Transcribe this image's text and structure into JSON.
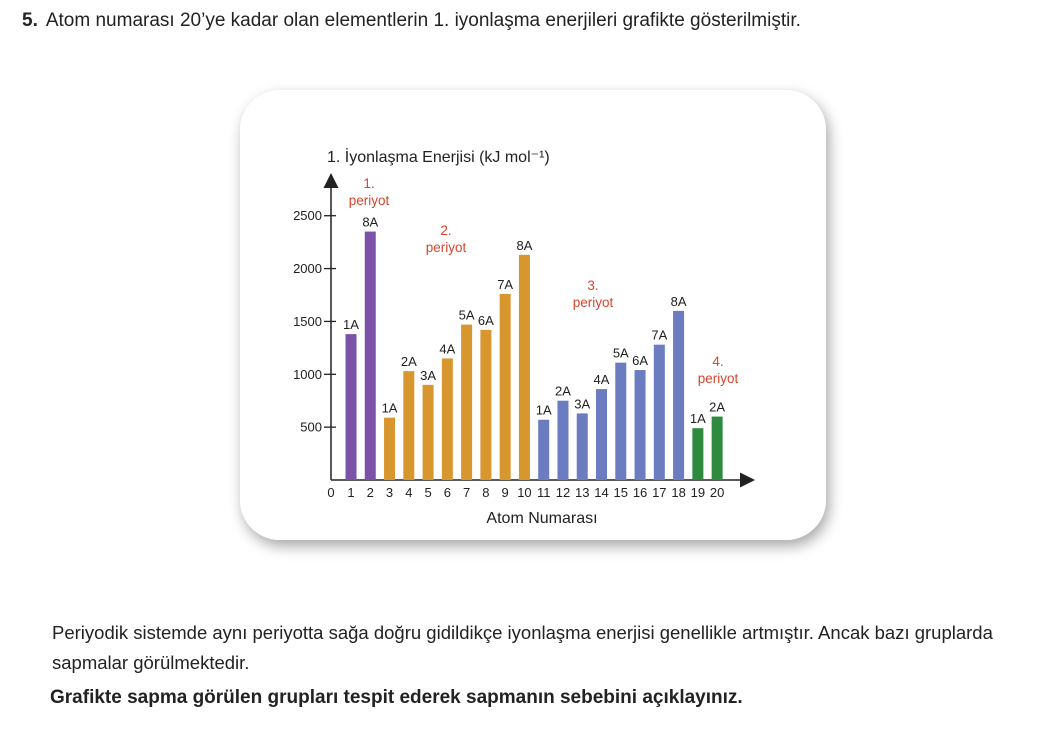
{
  "question": {
    "number": "5.",
    "text": "Atom numarası 20’ye kadar olan elementlerin 1. iyonlaşma enerjileri grafikte gösterilmiştir."
  },
  "chart_data": {
    "type": "bar",
    "y_label": "1. İyonlaşma Enerjisi (kJ mol⁻¹)",
    "x_label": "Atom Numarası",
    "x_origin_label": "0",
    "categories": [
      "1",
      "2",
      "3",
      "4",
      "5",
      "6",
      "7",
      "8",
      "9",
      "10",
      "11",
      "12",
      "13",
      "14",
      "15",
      "16",
      "17",
      "18",
      "19",
      "20"
    ],
    "values": [
      1380,
      2350,
      590,
      1030,
      900,
      1150,
      1470,
      1420,
      1760,
      2130,
      570,
      750,
      630,
      860,
      1110,
      1040,
      1280,
      1600,
      490,
      600
    ],
    "colors": [
      "#7b52a8",
      "#7b52a8",
      "#d8962f",
      "#d8962f",
      "#d8962f",
      "#d8962f",
      "#d8962f",
      "#d8962f",
      "#d8962f",
      "#d8962f",
      "#6b7cc0",
      "#6b7cc0",
      "#6b7cc0",
      "#6b7cc0",
      "#6b7cc0",
      "#6b7cc0",
      "#6b7cc0",
      "#6b7cc0",
      "#2e8a3e",
      "#2e8a3e"
    ],
    "groups": [
      "1A",
      "8A",
      "1A",
      "2A",
      "3A",
      "4A",
      "5A",
      "6A",
      "7A",
      "8A",
      "1A",
      "2A",
      "3A",
      "4A",
      "5A",
      "6A",
      "7A",
      "8A",
      "1A",
      "2A"
    ],
    "annotations": [
      {
        "lines": [
          "1.",
          "periyot"
        ],
        "color": "#d9442b"
      },
      {
        "lines": [
          "2.",
          "periyot"
        ],
        "color": "#d9442b"
      },
      {
        "lines": [
          "3.",
          "periyot"
        ],
        "color": "#d9442b"
      },
      {
        "lines": [
          "4.",
          "periyot"
        ],
        "color": "#d9442b"
      }
    ],
    "ylim": [
      0,
      2800
    ],
    "yticks": [
      500,
      1000,
      1500,
      2000,
      2500
    ]
  },
  "body": {
    "paragraph": "Periyodik sistemde aynı periyotta sağa doğru gidildikçe iyonlaşma enerjisi genellikle artmıştır. Ancak bazı gruplarda sapmalar görülmektedir.",
    "instruction": "Grafikte sapma görülen grupları tespit ederek sapmanın sebebini açıklayınız."
  }
}
